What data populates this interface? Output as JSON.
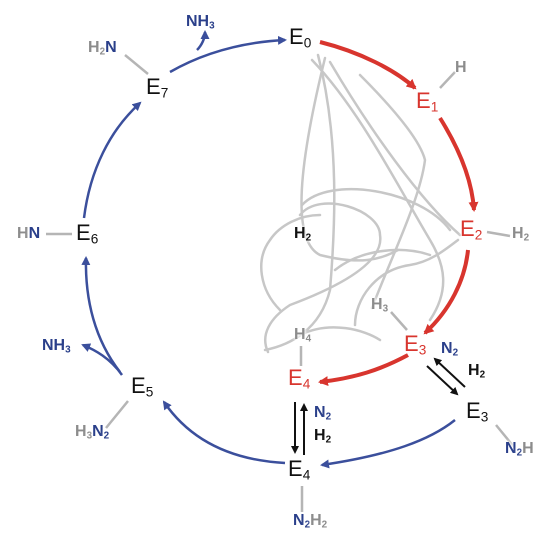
{
  "colors": {
    "accent_red": "#d8352e",
    "blue": "#3b4f9c",
    "grey": "#c7c7c7",
    "black": "#111111",
    "label_navy": "#2a3f8a",
    "label_grey": "#8c8c8c"
  },
  "nodes": {
    "e0": {
      "main": "E",
      "sub": "0"
    },
    "e1": {
      "main": "E",
      "sub": "1"
    },
    "e2": {
      "main": "E",
      "sub": "2"
    },
    "e3a": {
      "main": "E",
      "sub": "3"
    },
    "e3b": {
      "main": "E",
      "sub": "3"
    },
    "e4a": {
      "main": "E",
      "sub": "4"
    },
    "e4b": {
      "main": "E",
      "sub": "4"
    },
    "e5": {
      "main": "E",
      "sub": "5"
    },
    "e6": {
      "main": "E",
      "sub": "6"
    },
    "e7": {
      "main": "E",
      "sub": "7"
    }
  },
  "ligands": {
    "nh3_top": {
      "a": "NH",
      "a_sub": "3"
    },
    "h2n_e7": {
      "a": "H",
      "a_sub": "2",
      "b": "N"
    },
    "h_e1": {
      "a": "H"
    },
    "h2_e2": {
      "a": "H",
      "a_sub": "2"
    },
    "h2_center": {
      "a": "H",
      "a_sub": "2"
    },
    "h3_e3": {
      "a": "H",
      "a_sub": "3"
    },
    "n2_e3": {
      "a": "N",
      "a_sub": "2"
    },
    "h2_e3": {
      "a": "H",
      "a_sub": "2"
    },
    "h4_e4": {
      "a": "H",
      "a_sub": "4"
    },
    "n2_e4": {
      "a": "N",
      "a_sub": "2"
    },
    "h2_e4": {
      "a": "H",
      "a_sub": "2"
    },
    "n2h_e3b": {
      "a": "N",
      "a_sub": "2",
      "b": "H"
    },
    "n2h2_e4b": {
      "a": "N",
      "a_sub": "2",
      "b": "H",
      "b_sub": "2"
    },
    "h3n2_e5": {
      "a": "H",
      "a_sub": "3",
      "b": "N",
      "b_sub": "2"
    },
    "nh3_e5": {
      "a": "NH",
      "a_sub": "3"
    },
    "hn_e6": {
      "a": "H",
      "b": "N"
    }
  }
}
